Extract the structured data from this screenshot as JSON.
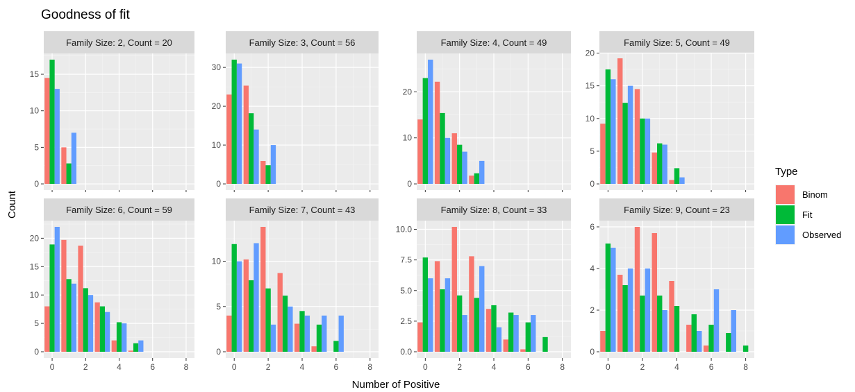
{
  "chart_data": {
    "type": "bar",
    "title": "Goodness of fit",
    "xlabel": "Number of Positive",
    "ylabel": "Count",
    "xlim": [
      -0.5,
      8.5
    ],
    "x_ticks": [
      0,
      2,
      4,
      6,
      8
    ],
    "legend": {
      "title": "Type",
      "position": "right",
      "entries": [
        {
          "name": "Binom",
          "color": "#F8766D"
        },
        {
          "name": "Fit",
          "color": "#00BA38"
        },
        {
          "name": "Observed",
          "color": "#619CFF"
        }
      ]
    },
    "grid": true,
    "panels": [
      {
        "label": "Family Size: 2, Count = 20",
        "ylim": [
          -0.85,
          17.85
        ],
        "y_ticks": [
          0,
          5,
          10,
          15
        ],
        "y_tick_labels": [
          "0",
          "5",
          "10",
          "15"
        ],
        "series": [
          {
            "name": "Binom",
            "x": [
              0,
              1
            ],
            "values": [
              14.5,
              5.0
            ]
          },
          {
            "name": "Fit",
            "x": [
              0,
              1
            ],
            "values": [
              17.0,
              2.8
            ]
          },
          {
            "name": "Observed",
            "x": [
              0,
              1
            ],
            "values": [
              13.0,
              7.0
            ]
          }
        ]
      },
      {
        "label": "Family Size: 3, Count = 56",
        "ylim": [
          -1.6,
          33.6
        ],
        "y_ticks": [
          0,
          10,
          20,
          30
        ],
        "y_tick_labels": [
          "0",
          "10",
          "20",
          "30"
        ],
        "series": [
          {
            "name": "Binom",
            "x": [
              0,
              1,
              2
            ],
            "values": [
              23.0,
              25.3,
              5.9
            ]
          },
          {
            "name": "Fit",
            "x": [
              0,
              1,
              2
            ],
            "values": [
              32.0,
              18.2,
              4.8
            ]
          },
          {
            "name": "Observed",
            "x": [
              0,
              1,
              2
            ],
            "values": [
              31.0,
              14.0,
              10.0
            ]
          }
        ]
      },
      {
        "label": "Family Size: 4, Count = 49",
        "ylim": [
          -1.35,
          28.35
        ],
        "y_ticks": [
          0,
          10,
          20
        ],
        "y_tick_labels": [
          "0",
          "10",
          "20"
        ],
        "series": [
          {
            "name": "Binom",
            "x": [
              0,
              1,
              2,
              3
            ],
            "values": [
              14.0,
              22.2,
              11.0,
              1.8
            ]
          },
          {
            "name": "Fit",
            "x": [
              0,
              1,
              2,
              3
            ],
            "values": [
              23.0,
              15.4,
              8.5,
              2.3
            ]
          },
          {
            "name": "Observed",
            "x": [
              0,
              1,
              2,
              3
            ],
            "values": [
              27.0,
              10.0,
              7.0,
              5.0
            ]
          }
        ]
      },
      {
        "label": "Family Size: 5, Count = 49",
        "ylim": [
          -0.95,
          19.95
        ],
        "y_ticks": [
          0,
          5,
          10,
          15,
          20
        ],
        "y_tick_labels": [
          "0",
          "5",
          "10",
          "15",
          "20"
        ],
        "series": [
          {
            "name": "Binom",
            "x": [
              0,
              1,
              2,
              3,
              4
            ],
            "values": [
              9.2,
              19.2,
              14.5,
              4.8,
              0.6
            ]
          },
          {
            "name": "Fit",
            "x": [
              0,
              1,
              2,
              3,
              4
            ],
            "values": [
              17.5,
              12.4,
              10.0,
              6.2,
              2.4
            ]
          },
          {
            "name": "Observed",
            "x": [
              0,
              1,
              2,
              3,
              4
            ],
            "values": [
              16.0,
              15.0,
              10.0,
              6.0,
              1.0
            ]
          }
        ]
      },
      {
        "label": "Family Size: 6, Count = 59",
        "ylim": [
          -1.1,
          23.1
        ],
        "y_ticks": [
          0,
          5,
          10,
          15,
          20
        ],
        "y_tick_labels": [
          "0",
          "5",
          "10",
          "15",
          "20"
        ],
        "series": [
          {
            "name": "Binom",
            "x": [
              0,
              1,
              2,
              3,
              4,
              5
            ],
            "values": [
              8.0,
              19.7,
              18.7,
              8.7,
              2.0,
              0.2
            ]
          },
          {
            "name": "Fit",
            "x": [
              0,
              1,
              2,
              3,
              4,
              5
            ],
            "values": [
              18.9,
              12.8,
              11.2,
              8.0,
              5.2,
              1.5
            ]
          },
          {
            "name": "Observed",
            "x": [
              0,
              1,
              2,
              3,
              4,
              5
            ],
            "values": [
              22.0,
              12.0,
              10.0,
              7.0,
              5.0,
              2.0
            ]
          }
        ]
      },
      {
        "label": "Family Size: 7, Count = 43",
        "ylim": [
          -0.69,
          14.49
        ],
        "y_ticks": [
          0,
          5,
          10
        ],
        "y_tick_labels": [
          "0",
          "5",
          "10"
        ],
        "series": [
          {
            "name": "Binom",
            "x": [
              0,
              1,
              2,
              3,
              4,
              5,
              6
            ],
            "values": [
              4.0,
              10.2,
              13.8,
              8.7,
              3.1,
              0.6,
              0.0
            ]
          },
          {
            "name": "Fit",
            "x": [
              0,
              1,
              2,
              3,
              4,
              5,
              6
            ],
            "values": [
              11.9,
              7.9,
              7.0,
              6.2,
              4.5,
              3.0,
              1.2
            ]
          },
          {
            "name": "Observed",
            "x": [
              0,
              1,
              2,
              3,
              4,
              5,
              6
            ],
            "values": [
              10.0,
              12.0,
              3.0,
              5.0,
              4.0,
              4.0,
              4.0
            ]
          }
        ]
      },
      {
        "label": "Family Size: 8, Count = 33",
        "ylim": [
          -0.51,
          10.71
        ],
        "y_ticks": [
          0,
          2.5,
          5,
          7.5,
          10
        ],
        "y_tick_labels": [
          "0.0",
          "2.5",
          "5.0",
          "7.5",
          "10.0"
        ],
        "series": [
          {
            "name": "Binom",
            "x": [
              0,
              1,
              2,
              3,
              4,
              5,
              6,
              7
            ],
            "values": [
              2.4,
              7.4,
              10.2,
              7.8,
              3.5,
              1.0,
              0.2,
              0.0
            ]
          },
          {
            "name": "Fit",
            "x": [
              0,
              1,
              2,
              3,
              4,
              5,
              6,
              7
            ],
            "values": [
              7.7,
              5.1,
              4.6,
              4.4,
              3.8,
              3.2,
              2.4,
              1.2
            ]
          },
          {
            "name": "Observed",
            "x": [
              0,
              1,
              2,
              3,
              4,
              5,
              6,
              7
            ],
            "values": [
              6.0,
              6.0,
              3.0,
              7.0,
              2.0,
              3.0,
              3.0,
              0.0
            ]
          }
        ]
      },
      {
        "label": "Family Size: 9, Count = 23",
        "ylim": [
          -0.3,
          6.3
        ],
        "y_ticks": [
          0,
          2,
          4,
          6
        ],
        "y_tick_labels": [
          "0",
          "2",
          "4",
          "6"
        ],
        "series": [
          {
            "name": "Binom",
            "x": [
              0,
              1,
              2,
              3,
              4,
              5,
              6,
              7,
              8
            ],
            "values": [
              1.0,
              3.7,
              6.0,
              5.7,
              3.4,
              1.3,
              0.3,
              0.0,
              0.0
            ]
          },
          {
            "name": "Fit",
            "x": [
              0,
              1,
              2,
              3,
              4,
              5,
              6,
              7,
              8
            ],
            "values": [
              5.2,
              3.2,
              2.7,
              2.7,
              2.2,
              1.8,
              1.3,
              0.9,
              0.3
            ]
          },
          {
            "name": "Observed",
            "x": [
              0,
              1,
              2,
              3,
              4,
              5,
              6,
              7,
              8
            ],
            "values": [
              5.0,
              4.0,
              4.0,
              2.0,
              0.0,
              1.0,
              3.0,
              2.0,
              0.0
            ]
          }
        ]
      }
    ]
  }
}
